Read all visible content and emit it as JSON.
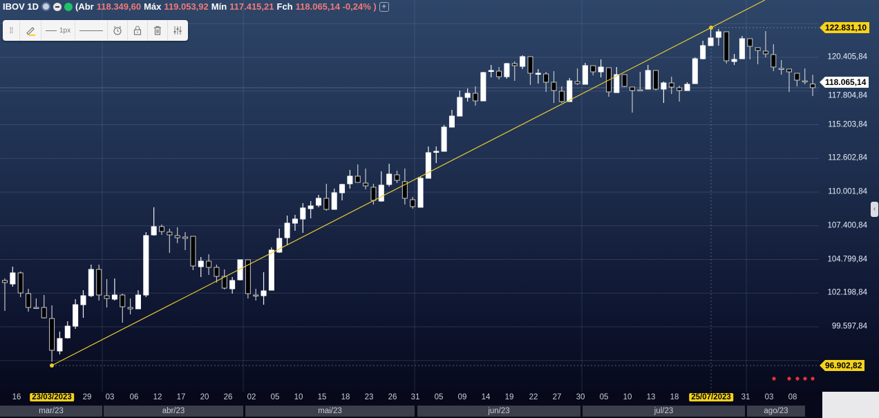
{
  "header": {
    "symbol": "IBOV 1D",
    "open_label": "(Abr",
    "open_value": "118.349,60",
    "high_label": "Máx",
    "high_value": "119.053,92",
    "low_label": "Mín",
    "low_value": "117.415,21",
    "close_label": "Fch",
    "close_value": "118.065,14 -0,24% )",
    "add_icon": "+"
  },
  "toolbar": {
    "line_width_label": "1px",
    "icons": [
      "drag-handle-icon",
      "pencil-icon",
      "line-width-icon",
      "line-style-icon",
      "alarm-icon",
      "lock-icon",
      "trash-icon",
      "settings-sliders-icon"
    ]
  },
  "colors": {
    "up": "#ffffff",
    "down": "#000000",
    "trendline": "#e8c930",
    "highlight": "#f5d21c",
    "header_value": "#f07a7a",
    "alert_dot": "#e8323a"
  },
  "y_axis": {
    "labels": [
      "120.405,84",
      "117.804,84",
      "115.203,84",
      "112.602,84",
      "110.001,84",
      "107.400,84",
      "104.799,84",
      "102.198,84",
      "99.597,84"
    ],
    "high_tag": "122.831,10",
    "last_tag": "118.065,14",
    "low_tag": "96.902,82"
  },
  "x_axis": {
    "labels": [
      "16",
      "23/03/2023",
      "29",
      "03",
      "06",
      "12",
      "17",
      "20",
      "26",
      "02",
      "05",
      "10",
      "15",
      "18",
      "23",
      "26",
      "31",
      "05",
      "09",
      "14",
      "19",
      "22",
      "27",
      "30",
      "05",
      "10",
      "13",
      "18",
      "25/07/2023",
      "31",
      "03",
      "08"
    ],
    "highlighted": [
      "23/03/2023",
      "25/07/2023"
    ],
    "months": [
      "mar/23",
      "abr/23",
      "mai/23",
      "jun/23",
      "jul/23",
      "ago/23"
    ]
  },
  "chart_data": {
    "type": "candlestick",
    "ylim": [
      95500,
      125000
    ],
    "grid": true,
    "ohlc": [
      [
        103174,
        103014,
        103334,
        100826
      ],
      [
        102907,
        103762,
        104242,
        102694
      ],
      [
        103762,
        102214,
        103869,
        101894
      ],
      [
        102160,
        101093,
        102534,
        100773
      ],
      [
        101093,
        101040,
        101787,
        100986
      ],
      [
        101093,
        100293,
        102054,
        100240
      ],
      [
        100240,
        97785,
        101253,
        96902
      ],
      [
        97732,
        98692,
        99226,
        97465
      ],
      [
        98746,
        99653,
        100026,
        98692
      ],
      [
        99653,
        101307,
        101733,
        99440
      ],
      [
        101307,
        102000,
        102427,
        100293
      ],
      [
        102000,
        104029,
        104402,
        101894
      ],
      [
        104029,
        102054,
        104402,
        101627
      ],
      [
        102000,
        101787,
        103281,
        101093
      ],
      [
        101733,
        102054,
        103334,
        101627
      ],
      [
        102054,
        101147,
        102160,
        99919
      ],
      [
        101093,
        100986,
        101787,
        100560
      ],
      [
        100986,
        102054,
        102427,
        100986
      ],
      [
        102054,
        106642,
        106909,
        101894
      ],
      [
        106695,
        107335,
        108829,
        106642
      ],
      [
        107335,
        106962,
        107495,
        106695
      ],
      [
        106909,
        106695,
        107175,
        105309
      ],
      [
        106642,
        106482,
        107282,
        106055
      ],
      [
        106535,
        106429,
        106909,
        105522
      ],
      [
        106589,
        104295,
        106589,
        103975
      ],
      [
        104242,
        104669,
        104989,
        103441
      ],
      [
        104669,
        104189,
        105202,
        103602
      ],
      [
        104189,
        103494,
        104402,
        103014
      ],
      [
        103494,
        102587,
        104029,
        102480
      ],
      [
        102534,
        103174,
        103441,
        102160
      ],
      [
        103227,
        104776,
        104776,
        103174
      ],
      [
        104776,
        102160,
        104776,
        101787
      ],
      [
        102054,
        102000,
        102534,
        101627
      ],
      [
        102000,
        102374,
        103815,
        101307
      ],
      [
        102427,
        105522,
        105735,
        102427
      ],
      [
        105362,
        106429,
        107175,
        105309
      ],
      [
        106482,
        107602,
        108189,
        105949
      ],
      [
        107602,
        107922,
        108242,
        107015
      ],
      [
        107922,
        108776,
        109149,
        106855
      ],
      [
        108722,
        108936,
        109309,
        107975
      ],
      [
        108989,
        109523,
        109789,
        108829
      ],
      [
        109523,
        108669,
        110643,
        108562
      ],
      [
        108669,
        109949,
        110269,
        108669
      ],
      [
        109949,
        110590,
        110643,
        109362
      ],
      [
        110643,
        111230,
        111710,
        110269
      ],
      [
        111230,
        110750,
        112137,
        110750
      ],
      [
        110696,
        110483,
        111817,
        110216
      ],
      [
        110376,
        109362,
        110643,
        109042
      ],
      [
        109309,
        110536,
        111603,
        109256
      ],
      [
        110590,
        111390,
        112190,
        110429
      ],
      [
        111336,
        110910,
        111657,
        110696
      ],
      [
        110803,
        109523,
        111817,
        109042
      ],
      [
        109416,
        108882,
        109629,
        108722
      ],
      [
        108829,
        111070,
        111176,
        108829
      ],
      [
        111070,
        113044,
        113524,
        111070
      ],
      [
        113097,
        113150,
        113524,
        112243
      ],
      [
        113150,
        115018,
        115178,
        113150
      ],
      [
        115018,
        115871,
        116351,
        115018
      ],
      [
        115871,
        117311,
        117845,
        115871
      ],
      [
        117311,
        117632,
        118005,
        116992
      ],
      [
        117632,
        117045,
        118165,
        116671
      ],
      [
        117045,
        119232,
        119286,
        117045
      ],
      [
        119339,
        119392,
        119819,
        118859
      ],
      [
        119339,
        118912,
        119659,
        118699
      ],
      [
        118912,
        119926,
        119979,
        118752
      ],
      [
        119926,
        119766,
        120086,
        118592
      ],
      [
        119712,
        120459,
        120566,
        119499
      ],
      [
        120459,
        119179,
        120459,
        118272
      ],
      [
        119126,
        119179,
        119499,
        118379
      ],
      [
        119126,
        118485,
        119286,
        117738
      ],
      [
        118485,
        117845,
        119339,
        116885
      ],
      [
        117792,
        116992,
        118165,
        116885
      ],
      [
        116992,
        118592,
        118806,
        116992
      ],
      [
        118539,
        118379,
        119552,
        118272
      ],
      [
        118325,
        119766,
        119979,
        118325
      ],
      [
        119766,
        119286,
        119766,
        119019
      ],
      [
        119286,
        119659,
        120246,
        118859
      ],
      [
        119606,
        117738,
        119606,
        117365
      ],
      [
        117685,
        119072,
        119659,
        117685
      ],
      [
        119072,
        118165,
        119072,
        118112
      ],
      [
        118112,
        117845,
        118112,
        116138
      ],
      [
        117898,
        117845,
        119286,
        117845
      ],
      [
        117952,
        119392,
        119819,
        117952
      ],
      [
        119392,
        117952,
        119392,
        117845
      ],
      [
        117952,
        118432,
        118539,
        116885
      ],
      [
        118432,
        118112,
        118912,
        117578
      ],
      [
        118058,
        117845,
        118218,
        116992
      ],
      [
        117845,
        118325,
        118485,
        117845
      ],
      [
        118379,
        120299,
        120406,
        118379
      ],
      [
        120299,
        121313,
        121686,
        120246
      ],
      [
        121313,
        121900,
        122831,
        121313
      ],
      [
        121953,
        122380,
        122593,
        121313
      ],
      [
        122380,
        120139,
        122380,
        119926
      ],
      [
        120086,
        120246,
        120673,
        119819
      ],
      [
        120299,
        121846,
        122060,
        120299
      ],
      [
        121846,
        121260,
        121846,
        120246
      ],
      [
        121153,
        120939,
        121153,
        119872
      ],
      [
        120886,
        120673,
        122433,
        120406
      ],
      [
        120619,
        119659,
        121420,
        119339
      ],
      [
        119552,
        119499,
        120192,
        119072
      ],
      [
        119499,
        119286,
        119499,
        117738
      ],
      [
        119179,
        118645,
        119179,
        118165
      ],
      [
        118592,
        118539,
        119552,
        118325
      ],
      [
        118349.6,
        118065.14,
        119053.92,
        117415.21
      ]
    ],
    "trendline": {
      "from": [
        "23/03/2023",
        96902.82
      ],
      "to": [
        "25/07/2023",
        122831.1
      ]
    }
  }
}
